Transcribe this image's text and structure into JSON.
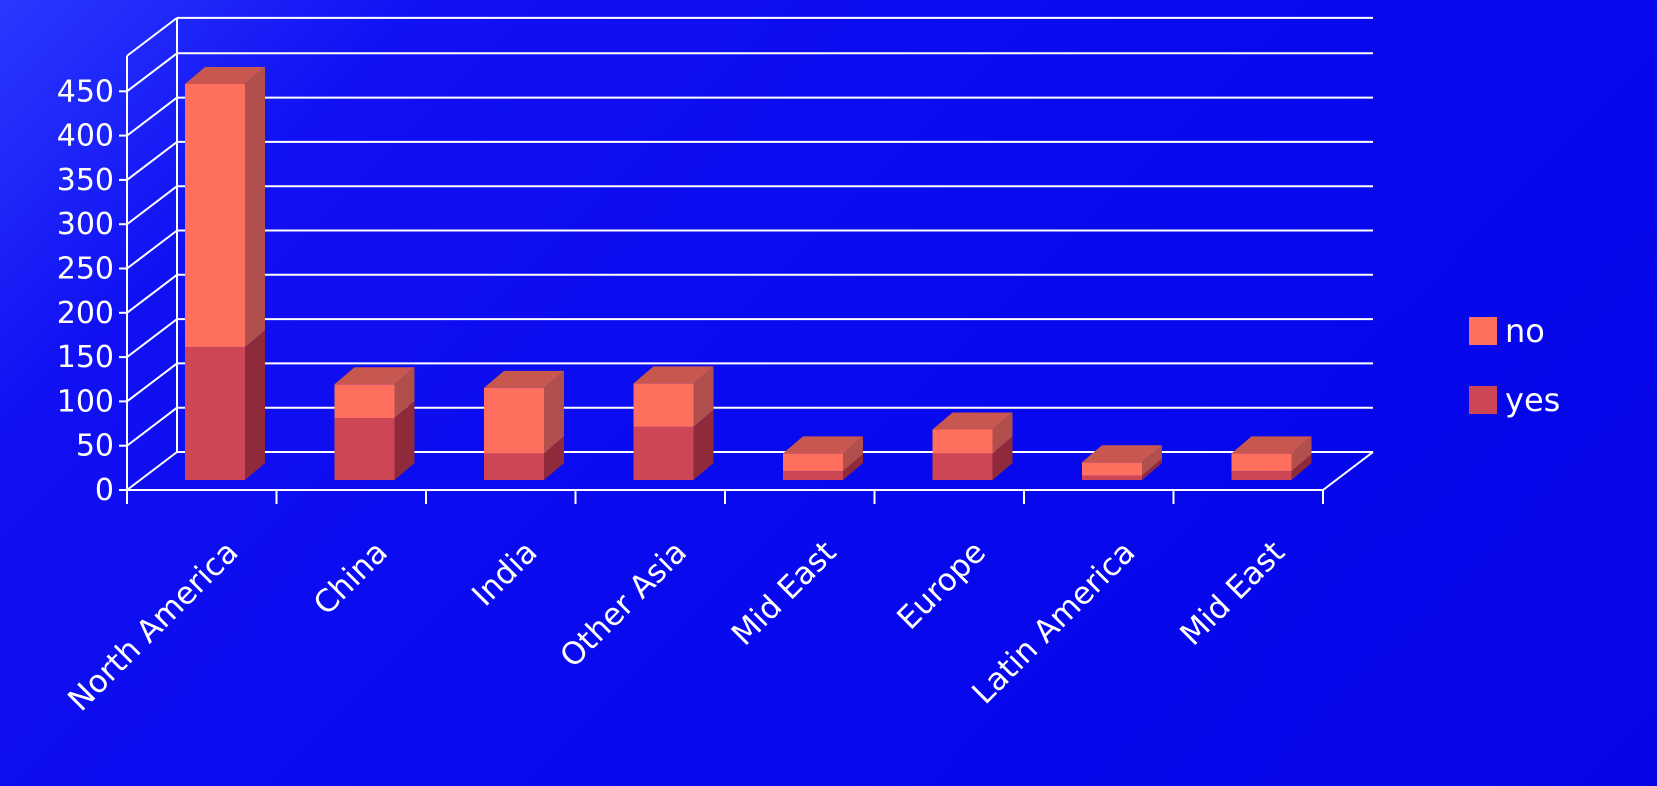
{
  "chart_data": {
    "type": "bar",
    "stacked": true,
    "three_d": true,
    "categories": [
      "North America",
      "China",
      "India",
      "Other Asia",
      "Mid East",
      "Europe",
      "Latin America",
      "Mid East"
    ],
    "series": [
      {
        "name": "yes",
        "values": [
          150,
          70,
          30,
          60,
          10,
          30,
          5,
          10
        ],
        "color": "#cc4655",
        "side": "#8f2a3a",
        "top": "#b84b52"
      },
      {
        "name": "no",
        "values": [
          297,
          38,
          74,
          49,
          20,
          27,
          15,
          20
        ],
        "color": "#ff6f5e",
        "side": "#b04f4c",
        "top": "#c85750"
      }
    ],
    "yticks": [
      0,
      50,
      100,
      150,
      200,
      250,
      300,
      350,
      400,
      450
    ],
    "ylim": [
      0,
      490
    ],
    "grid": true,
    "legend": {
      "position": "right",
      "order": [
        "no",
        "yes"
      ]
    },
    "colors": {
      "background": "#0808ee",
      "grid": "#ffffff",
      "text": "#ffffff"
    }
  }
}
